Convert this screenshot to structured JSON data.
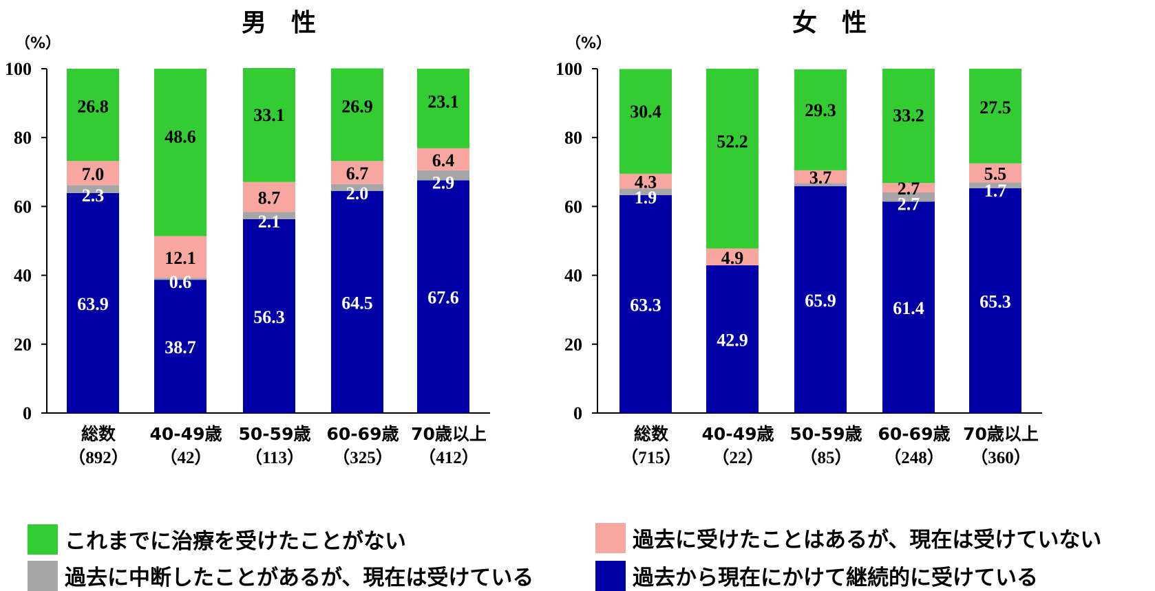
{
  "colors": {
    "never": "#33cc33",
    "past_not_now": "#f7a6a0",
    "interrupted_now": "#a6a6a6",
    "continuous": "#0000a6"
  },
  "legend": [
    {
      "key": "never",
      "label": "これまでに治療を受けたことがない"
    },
    {
      "key": "past_not_now",
      "label": "過去に受けたことはあるが、現在は受けていない"
    },
    {
      "key": "interrupted_now",
      "label": "過去に中断したことがあるが、現在は受けている"
    },
    {
      "key": "continuous",
      "label": "過去から現在にかけて継続的に受けている"
    }
  ],
  "chart_data": [
    {
      "type": "bar",
      "stacked": true,
      "title": "男　性",
      "ylabel": "（%）",
      "ylim": [
        0,
        100
      ],
      "yticks": [
        "0",
        "20",
        "40",
        "60",
        "80",
        "100"
      ],
      "categories": [
        "総数",
        "40-49歳",
        "50-59歳",
        "60-69歳",
        "70歳以上"
      ],
      "category_counts": [
        "（892）",
        "（42）",
        "（113）",
        "（325）",
        "（412）"
      ],
      "series": [
        {
          "key": "continuous",
          "values": [
            63.9,
            38.7,
            56.3,
            64.5,
            67.6
          ],
          "labels": [
            "63.9",
            "38.7",
            "56.3",
            "64.5",
            "67.6"
          ]
        },
        {
          "key": "interrupted_now",
          "values": [
            2.3,
            0.6,
            2.1,
            2.0,
            2.9
          ],
          "labels": [
            "2.3",
            "0.6",
            "2.1",
            "2.0",
            "2.9"
          ]
        },
        {
          "key": "past_not_now",
          "values": [
            7.0,
            12.1,
            8.7,
            6.7,
            6.4
          ],
          "labels": [
            "7.0",
            "12.1",
            "8.7",
            "6.7",
            "6.4"
          ]
        },
        {
          "key": "never",
          "values": [
            26.8,
            48.6,
            33.1,
            26.9,
            23.1
          ],
          "labels": [
            "26.8",
            "48.6",
            "33.1",
            "26.9",
            "23.1"
          ]
        }
      ]
    },
    {
      "type": "bar",
      "stacked": true,
      "title": "女　性",
      "ylabel": "（%）",
      "ylim": [
        0,
        100
      ],
      "yticks": [
        "0",
        "20",
        "40",
        "60",
        "80",
        "100"
      ],
      "categories": [
        "総数",
        "40-49歳",
        "50-59歳",
        "60-69歳",
        "70歳以上"
      ],
      "category_counts": [
        "（715）",
        "（22）",
        "（85）",
        "（248）",
        "（360）"
      ],
      "series": [
        {
          "key": "continuous",
          "values": [
            63.3,
            42.9,
            65.9,
            61.4,
            65.3
          ],
          "labels": [
            "63.3",
            "42.9",
            "65.9",
            "61.4",
            "65.3"
          ]
        },
        {
          "key": "interrupted_now",
          "values": [
            1.9,
            0,
            0.9,
            2.7,
            1.7
          ],
          "labels": [
            "1.9",
            "",
            "",
            "2.7",
            "1.7"
          ]
        },
        {
          "key": "past_not_now",
          "values": [
            4.3,
            4.9,
            3.7,
            2.7,
            5.5
          ],
          "labels": [
            "4.3",
            "4.9",
            "3.7",
            "2.7",
            "5.5"
          ]
        },
        {
          "key": "never",
          "values": [
            30.4,
            52.2,
            29.3,
            33.2,
            27.5
          ],
          "labels": [
            "30.4",
            "52.2",
            "29.3",
            "33.2",
            "27.5"
          ]
        }
      ]
    }
  ]
}
